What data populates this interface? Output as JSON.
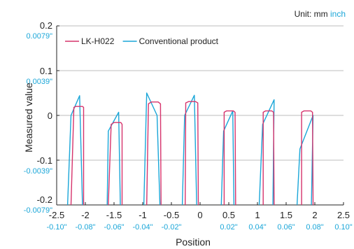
{
  "unit_note": {
    "prefix": "Unit: mm ",
    "inch": "inch"
  },
  "colors": {
    "lkh": "#d6336c",
    "conv": "#1aa6d8",
    "inch": "#1aa6d8",
    "text": "#222222",
    "grid": "#bdbdbd"
  },
  "chart_data": {
    "type": "line",
    "title": "",
    "xlabel": "Position",
    "ylabel": "Measured value",
    "xlim": [
      -2.5,
      2.5
    ],
    "ylim": [
      -0.2,
      0.2
    ],
    "x_ticks": [
      {
        "value": -2.5,
        "mm": "-2.5",
        "inch": "-0.10\""
      },
      {
        "value": -2,
        "mm": "-2",
        "inch": "-0.08\""
      },
      {
        "value": -1.5,
        "mm": "-1.5",
        "inch": "-0.06\""
      },
      {
        "value": -1,
        "mm": "-1",
        "inch": "-0.04\""
      },
      {
        "value": -0.5,
        "mm": "-0.5",
        "inch": "-0.02\""
      },
      {
        "value": 0,
        "mm": "0",
        "inch": ""
      },
      {
        "value": 0.5,
        "mm": "0.5",
        "inch": "0.02\""
      },
      {
        "value": 1,
        "mm": "1",
        "inch": "0.04\""
      },
      {
        "value": 1.5,
        "mm": "1.5",
        "inch": "0.06\""
      },
      {
        "value": 2,
        "mm": "2",
        "inch": "0.08\""
      },
      {
        "value": 2.5,
        "mm": "2.5",
        "inch": "0.10\""
      }
    ],
    "y_ticks": [
      {
        "value": 0.2,
        "mm": "0.2",
        "inch": "0.0079\""
      },
      {
        "value": 0.1,
        "mm": "0.1",
        "inch": "0.0039\""
      },
      {
        "value": 0,
        "mm": "0",
        "inch": ""
      },
      {
        "value": -0.1,
        "mm": "-0.1",
        "inch": "-0.0039\""
      },
      {
        "value": -0.2,
        "mm": "-0.2",
        "inch": "-0.0079\""
      }
    ],
    "grid": true,
    "legend": "top-left",
    "series": [
      {
        "name": "LK-H022",
        "color": "#d6336c",
        "segments": [
          [
            [
              -2.25,
              -0.2
            ],
            [
              -2.2,
              0.018
            ],
            [
              -2.17,
              0.02
            ],
            [
              -2.05,
              0.02
            ],
            [
              -2.03,
              0.018
            ],
            [
              -2.03,
              -0.2
            ]
          ],
          [
            [
              -1.6,
              -0.2
            ],
            [
              -1.55,
              -0.02
            ],
            [
              -1.5,
              -0.016
            ],
            [
              -1.38,
              -0.016
            ],
            [
              -1.36,
              -0.02
            ],
            [
              -1.36,
              -0.2
            ]
          ],
          [
            [
              -0.93,
              -0.2
            ],
            [
              -0.9,
              0.026
            ],
            [
              -0.85,
              0.03
            ],
            [
              -0.73,
              0.03
            ],
            [
              -0.69,
              0.026
            ],
            [
              -0.68,
              -0.2
            ]
          ],
          [
            [
              -0.26,
              -0.2
            ],
            [
              -0.25,
              0.028
            ],
            [
              -0.2,
              0.031
            ],
            [
              -0.08,
              0.031
            ],
            [
              -0.04,
              0.028
            ],
            [
              -0.03,
              -0.2
            ]
          ],
          [
            [
              0.42,
              -0.2
            ],
            [
              0.42,
              0.007
            ],
            [
              0.46,
              0.01
            ],
            [
              0.58,
              0.01
            ],
            [
              0.61,
              0.007
            ],
            [
              0.62,
              -0.2
            ]
          ],
          [
            [
              1.1,
              -0.2
            ],
            [
              1.1,
              0.007
            ],
            [
              1.14,
              0.01
            ],
            [
              1.25,
              0.01
            ],
            [
              1.28,
              0.007
            ],
            [
              1.29,
              -0.2
            ]
          ],
          [
            [
              1.77,
              -0.2
            ],
            [
              1.77,
              0.007
            ],
            [
              1.81,
              0.01
            ],
            [
              1.93,
              0.01
            ],
            [
              1.96,
              0.007
            ],
            [
              1.97,
              -0.2
            ]
          ]
        ]
      },
      {
        "name": "Conventional product",
        "color": "#1aa6d8",
        "segments": [
          [
            [
              -2.31,
              -0.2
            ],
            [
              -2.25,
              0.0
            ],
            [
              -2.1,
              0.044
            ],
            [
              -2.05,
              -0.2
            ]
          ],
          [
            [
              -1.62,
              -0.2
            ],
            [
              -1.6,
              -0.035
            ],
            [
              -1.42,
              0.007
            ],
            [
              -1.39,
              -0.2
            ]
          ],
          [
            [
              -0.98,
              -0.2
            ],
            [
              -0.93,
              0.05
            ],
            [
              -0.75,
              0.0
            ],
            [
              -0.7,
              -0.2
            ]
          ],
          [
            [
              -0.31,
              -0.2
            ],
            [
              -0.27,
              0.0
            ],
            [
              -0.1,
              0.045
            ],
            [
              -0.06,
              -0.2
            ]
          ],
          [
            [
              0.37,
              -0.2
            ],
            [
              0.41,
              -0.035
            ],
            [
              0.57,
              0.01
            ],
            [
              0.59,
              -0.2
            ]
          ],
          [
            [
              1.03,
              -0.2
            ],
            [
              1.09,
              -0.02
            ],
            [
              1.29,
              0.035
            ],
            [
              1.27,
              -0.2
            ]
          ],
          [
            [
              1.69,
              -0.2
            ],
            [
              1.74,
              -0.075
            ],
            [
              1.97,
              0.0
            ],
            [
              1.94,
              -0.2
            ]
          ]
        ]
      }
    ]
  }
}
